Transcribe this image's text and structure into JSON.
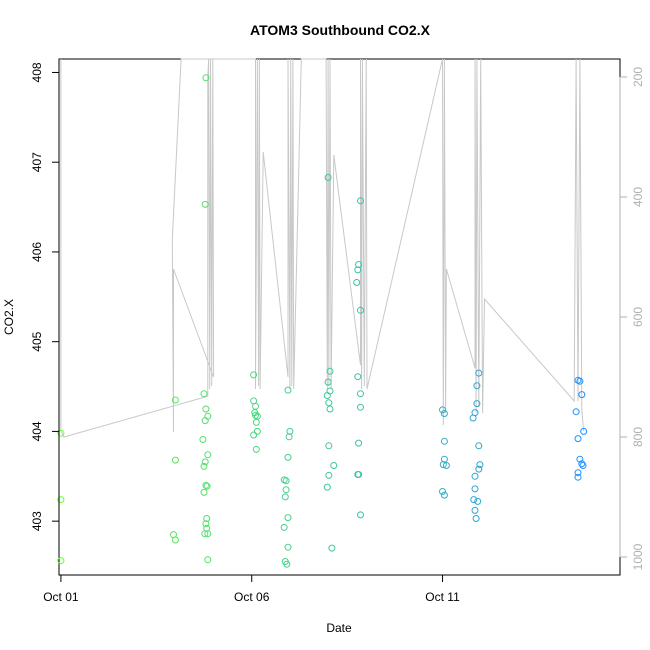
{
  "chart_data": {
    "type": "scatter",
    "title": "ATOM3 Southbound CO2.X",
    "xlabel": "Date",
    "ylabel": "CO2.X",
    "x_ticks": [
      "Oct 01",
      "Oct 06",
      "Oct 11"
    ],
    "x_tick_days": [
      1,
      6,
      11
    ],
    "xlim": [
      0.95,
      15.65
    ],
    "ylim": [
      402.4,
      408.15
    ],
    "y_ticks": [
      403,
      404,
      405,
      406,
      407,
      408
    ],
    "y2_ticks": [
      200,
      400,
      600,
      800,
      1000
    ],
    "y2lim": [
      1030,
      170
    ],
    "colors": {
      "start": "#66ff33",
      "end": "#1e90ff",
      "depth_line": "#c8c8c8"
    },
    "points": [
      {
        "x": 1.0,
        "y": 403.98
      },
      {
        "x": 1.0,
        "y": 403.24
      },
      {
        "x": 1.0,
        "y": 402.56
      },
      {
        "x": 4.0,
        "y": 404.35
      },
      {
        "x": 4.0,
        "y": 403.68
      },
      {
        "x": 3.95,
        "y": 402.85
      },
      {
        "x": 4.0,
        "y": 402.79
      },
      {
        "x": 4.75,
        "y": 404.42
      },
      {
        "x": 4.8,
        "y": 404.25
      },
      {
        "x": 4.85,
        "y": 404.17
      },
      {
        "x": 4.78,
        "y": 404.12
      },
      {
        "x": 4.72,
        "y": 403.91
      },
      {
        "x": 4.85,
        "y": 403.74
      },
      {
        "x": 4.78,
        "y": 403.66
      },
      {
        "x": 4.75,
        "y": 403.61
      },
      {
        "x": 4.8,
        "y": 403.4
      },
      {
        "x": 4.83,
        "y": 403.39
      },
      {
        "x": 4.75,
        "y": 403.32
      },
      {
        "x": 4.82,
        "y": 403.03
      },
      {
        "x": 4.8,
        "y": 402.97
      },
      {
        "x": 4.82,
        "y": 402.92
      },
      {
        "x": 4.77,
        "y": 402.86
      },
      {
        "x": 4.85,
        "y": 402.86
      },
      {
        "x": 4.85,
        "y": 402.57
      },
      {
        "x": 4.8,
        "y": 407.94
      },
      {
        "x": 4.78,
        "y": 406.53
      },
      {
        "x": 6.05,
        "y": 404.63
      },
      {
        "x": 6.05,
        "y": 404.34
      },
      {
        "x": 6.1,
        "y": 404.28
      },
      {
        "x": 6.08,
        "y": 404.21
      },
      {
        "x": 6.1,
        "y": 404.18
      },
      {
        "x": 6.15,
        "y": 404.17
      },
      {
        "x": 6.12,
        "y": 404.1
      },
      {
        "x": 6.15,
        "y": 404.0
      },
      {
        "x": 6.05,
        "y": 403.96
      },
      {
        "x": 6.12,
        "y": 403.8
      },
      {
        "x": 6.95,
        "y": 404.46
      },
      {
        "x": 7.0,
        "y": 404.0
      },
      {
        "x": 6.98,
        "y": 403.94
      },
      {
        "x": 6.95,
        "y": 403.71
      },
      {
        "x": 6.85,
        "y": 403.46
      },
      {
        "x": 6.9,
        "y": 403.45
      },
      {
        "x": 6.9,
        "y": 403.35
      },
      {
        "x": 6.88,
        "y": 403.27
      },
      {
        "x": 6.95,
        "y": 403.04
      },
      {
        "x": 6.85,
        "y": 402.93
      },
      {
        "x": 6.95,
        "y": 402.71
      },
      {
        "x": 6.88,
        "y": 402.55
      },
      {
        "x": 6.92,
        "y": 402.52
      },
      {
        "x": 8.0,
        "y": 406.83
      },
      {
        "x": 8.05,
        "y": 404.67
      },
      {
        "x": 8.0,
        "y": 404.55
      },
      {
        "x": 8.05,
        "y": 404.45
      },
      {
        "x": 7.98,
        "y": 404.4
      },
      {
        "x": 8.02,
        "y": 404.32
      },
      {
        "x": 8.05,
        "y": 404.25
      },
      {
        "x": 8.02,
        "y": 403.84
      },
      {
        "x": 8.15,
        "y": 403.62
      },
      {
        "x": 8.02,
        "y": 403.51
      },
      {
        "x": 7.98,
        "y": 403.38
      },
      {
        "x": 8.1,
        "y": 402.7
      },
      {
        "x": 8.85,
        "y": 406.57
      },
      {
        "x": 8.8,
        "y": 405.86
      },
      {
        "x": 8.78,
        "y": 405.8
      },
      {
        "x": 8.75,
        "y": 405.66
      },
      {
        "x": 8.85,
        "y": 405.35
      },
      {
        "x": 8.78,
        "y": 404.61
      },
      {
        "x": 8.85,
        "y": 404.42
      },
      {
        "x": 8.85,
        "y": 404.27
      },
      {
        "x": 8.8,
        "y": 403.87
      },
      {
        "x": 8.8,
        "y": 403.52
      },
      {
        "x": 8.78,
        "y": 403.52
      },
      {
        "x": 8.85,
        "y": 403.07
      },
      {
        "x": 11.0,
        "y": 404.24
      },
      {
        "x": 11.05,
        "y": 404.2
      },
      {
        "x": 11.05,
        "y": 403.89
      },
      {
        "x": 11.05,
        "y": 403.69
      },
      {
        "x": 11.02,
        "y": 403.63
      },
      {
        "x": 11.1,
        "y": 403.62
      },
      {
        "x": 11.0,
        "y": 403.33
      },
      {
        "x": 11.05,
        "y": 403.29
      },
      {
        "x": 11.95,
        "y": 404.65
      },
      {
        "x": 11.9,
        "y": 404.51
      },
      {
        "x": 11.9,
        "y": 404.31
      },
      {
        "x": 11.85,
        "y": 404.21
      },
      {
        "x": 11.8,
        "y": 404.15
      },
      {
        "x": 11.95,
        "y": 403.84
      },
      {
        "x": 11.98,
        "y": 403.63
      },
      {
        "x": 11.95,
        "y": 403.58
      },
      {
        "x": 11.85,
        "y": 403.5
      },
      {
        "x": 11.85,
        "y": 403.36
      },
      {
        "x": 11.82,
        "y": 403.24
      },
      {
        "x": 11.92,
        "y": 403.22
      },
      {
        "x": 11.85,
        "y": 403.12
      },
      {
        "x": 11.88,
        "y": 403.03
      },
      {
        "x": 14.55,
        "y": 404.57
      },
      {
        "x": 14.6,
        "y": 404.56
      },
      {
        "x": 14.65,
        "y": 404.41
      },
      {
        "x": 14.5,
        "y": 404.22
      },
      {
        "x": 14.7,
        "y": 404.0
      },
      {
        "x": 14.55,
        "y": 403.92
      },
      {
        "x": 14.6,
        "y": 403.69
      },
      {
        "x": 14.65,
        "y": 403.64
      },
      {
        "x": 14.68,
        "y": 403.62
      },
      {
        "x": 14.55,
        "y": 403.54
      },
      {
        "x": 14.55,
        "y": 403.49
      }
    ],
    "depth_profile": [
      [
        1.0,
        170
      ],
      [
        1.0,
        790
      ],
      [
        1.08,
        800
      ],
      [
        4.85,
        732
      ],
      [
        4.85,
        200
      ],
      [
        4.87,
        170
      ],
      [
        4.9,
        720
      ],
      [
        4.92,
        170
      ],
      [
        4.95,
        715
      ],
      [
        4.98,
        170
      ],
      [
        5.0,
        700
      ],
      [
        3.95,
        520
      ],
      [
        3.95,
        792
      ],
      [
        3.92,
        470
      ],
      [
        4.15,
        170
      ],
      [
        6.1,
        170
      ],
      [
        6.1,
        720
      ],
      [
        6.15,
        170
      ],
      [
        6.18,
        715
      ],
      [
        6.2,
        170
      ],
      [
        6.22,
        720
      ],
      [
        6.3,
        325
      ],
      [
        6.95,
        700
      ],
      [
        6.95,
        170
      ],
      [
        7.0,
        720
      ],
      [
        7.02,
        170
      ],
      [
        7.05,
        715
      ],
      [
        7.08,
        170
      ],
      [
        7.1,
        720
      ],
      [
        7.3,
        170
      ],
      [
        7.95,
        170
      ],
      [
        7.98,
        720
      ],
      [
        8.0,
        170
      ],
      [
        8.02,
        715
      ],
      [
        8.05,
        170
      ],
      [
        8.08,
        720
      ],
      [
        8.15,
        330
      ],
      [
        8.85,
        680
      ],
      [
        8.85,
        170
      ],
      [
        8.88,
        720
      ],
      [
        8.9,
        170
      ],
      [
        8.95,
        715
      ],
      [
        9.0,
        170
      ],
      [
        9.02,
        720
      ],
      [
        11.0,
        170
      ],
      [
        11.02,
        780
      ],
      [
        11.05,
        170
      ],
      [
        11.08,
        760
      ],
      [
        11.1,
        520
      ],
      [
        11.85,
        685
      ],
      [
        11.85,
        170
      ],
      [
        11.88,
        760
      ],
      [
        11.9,
        170
      ],
      [
        11.95,
        750
      ],
      [
        12.0,
        170
      ],
      [
        12.05,
        760
      ],
      [
        12.1,
        570
      ],
      [
        14.45,
        740
      ],
      [
        14.5,
        170
      ],
      [
        14.55,
        740
      ],
      [
        14.6,
        170
      ],
      [
        14.65,
        755
      ],
      [
        14.7,
        790
      ]
    ]
  }
}
